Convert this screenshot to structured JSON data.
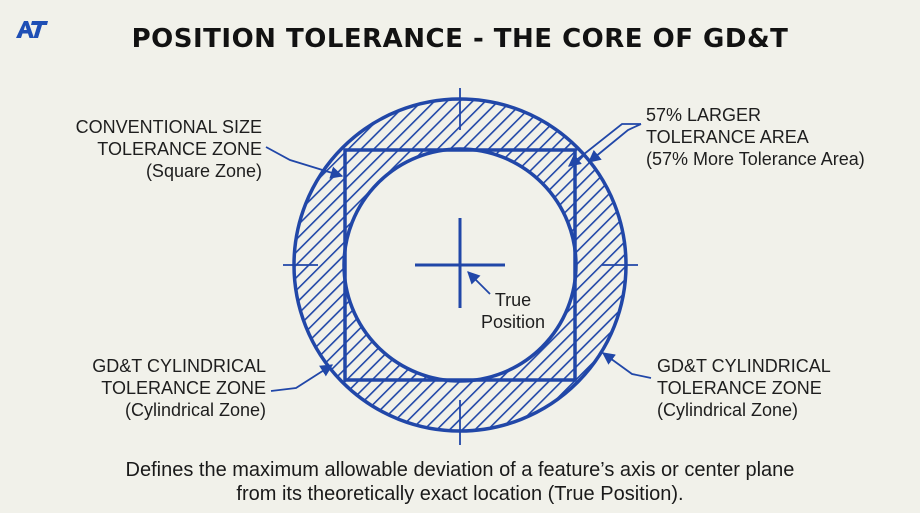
{
  "logo": {
    "text": "AT",
    "icon": "at-brand-logo",
    "color": "#1f4fb5"
  },
  "title": "POSITION TOLERANCE - THE CORE OF GD&T",
  "labels": {
    "conventional": {
      "line1": "CONVENTIONAL SIZE",
      "line2": "TOLERANCE ZONE",
      "line3": "(Square Zone)"
    },
    "larger_area": {
      "line1": "57% LARGER",
      "line2": "TOLERANCE AREA",
      "line3": "(57% More Tolerance Area)"
    },
    "true_position": {
      "line1": "True",
      "line2": "Position"
    },
    "cyl_left": {
      "line1": "GD&T CYLINDRICAL",
      "line2": "TOLERANCE ZONE",
      "line3": "(Cylindrical Zone)"
    },
    "cyl_right": {
      "line1": "GD&T CYLINDRICAL",
      "line2": "TOLERANCE ZONE",
      "line3": "(Cylindrical Zone)"
    }
  },
  "footer": {
    "line1": "Defines the maximum allowable deviation of a feature’s axis or center plane",
    "line2": "from its theoretically exact location (True Position)."
  },
  "colors": {
    "line": "#2147a8",
    "background": "#f1f1ea",
    "text": "#1b1b1b"
  }
}
